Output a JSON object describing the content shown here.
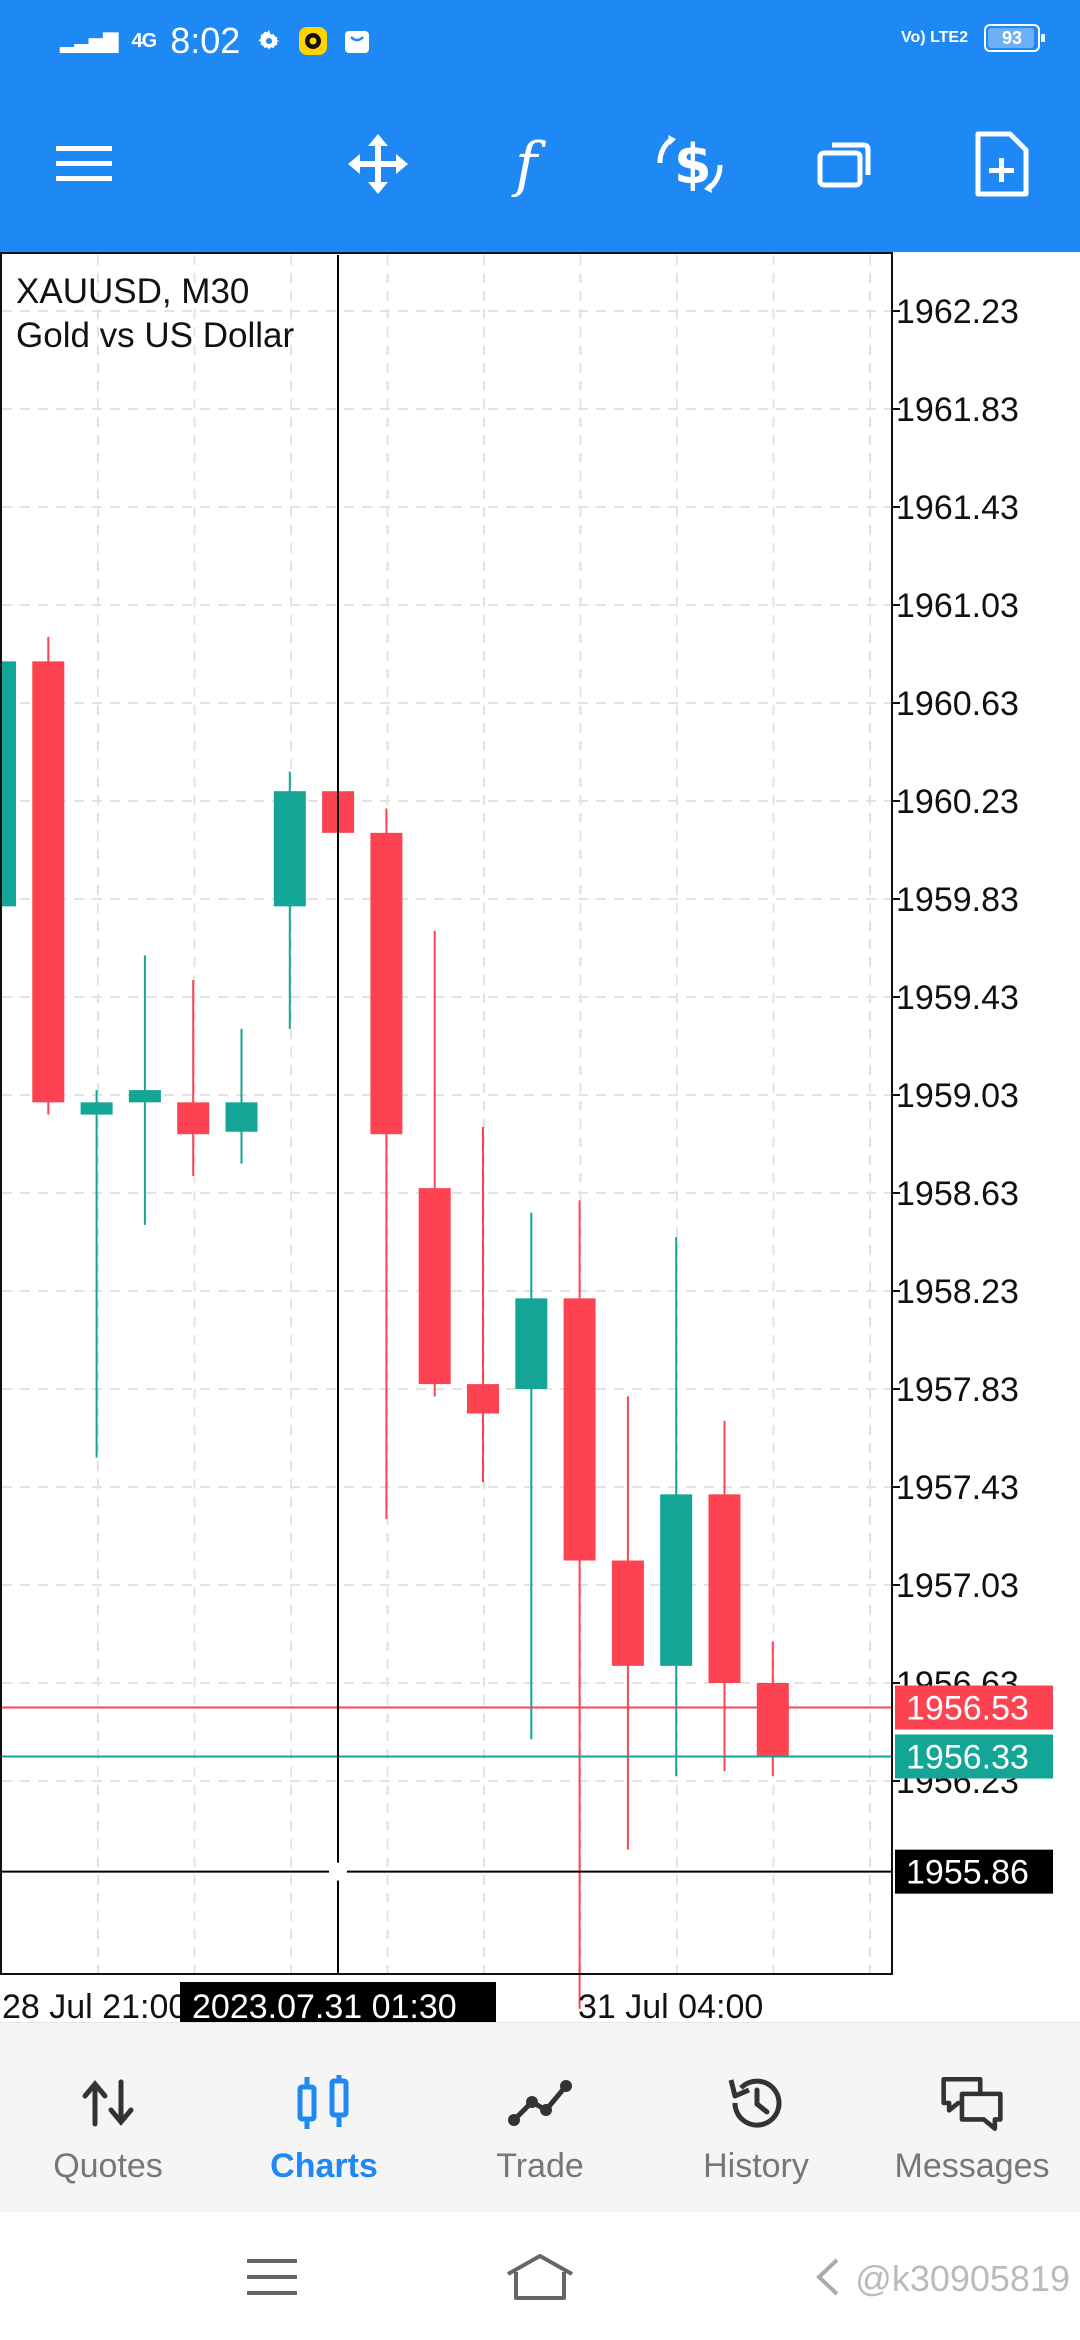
{
  "status_bar": {
    "signal": "4G",
    "time": "8:02",
    "network": "Vo) LTE2",
    "battery": "93"
  },
  "toolbar": {
    "icons": [
      "menu-icon",
      "crosshair-move-icon",
      "indicators-f-icon",
      "trade-dollar-icon",
      "windows-icon",
      "new-order-icon"
    ]
  },
  "chart": {
    "symbol_line": "XAUUSD, M30",
    "description": "Gold vs US Dollar",
    "price_labels": [
      "1962.23",
      "1961.83",
      "1961.43",
      "1961.03",
      "1960.63",
      "1960.23",
      "1959.83",
      "1959.43",
      "1959.03",
      "1958.63",
      "1958.23",
      "1957.83",
      "1957.43",
      "1957.03",
      "1956.63",
      "1956.23"
    ],
    "bid_price": "1956.53",
    "ask_price": "1956.33",
    "crosshair_price": "1955.86",
    "time_labels": [
      "28 Jul 21:00",
      "31 Jul 04:00"
    ],
    "crosshair_time": "2023.07.31 01:30",
    "colors": {
      "bull": "#13a596",
      "bear": "#fd4352",
      "crosshair": "#000000"
    }
  },
  "chart_data": {
    "type": "candlestick",
    "title": "XAUUSD, M30",
    "subtitle": "Gold vs US Dollar",
    "ylim": [
      1955.3,
      1962.4
    ],
    "candles": [
      {
        "o": 1959.8,
        "h": 1960.8,
        "l": 1959.8,
        "c": 1960.8
      },
      {
        "o": 1960.8,
        "h": 1960.9,
        "l": 1958.95,
        "c": 1959.0
      },
      {
        "o": 1958.95,
        "h": 1959.05,
        "l": 1957.55,
        "c": 1959.0
      },
      {
        "o": 1959.0,
        "h": 1959.6,
        "l": 1958.5,
        "c": 1959.05
      },
      {
        "o": 1959.0,
        "h": 1959.5,
        "l": 1958.7,
        "c": 1958.87
      },
      {
        "o": 1958.88,
        "h": 1959.3,
        "l": 1958.75,
        "c": 1959.0
      },
      {
        "o": 1959.8,
        "h": 1960.35,
        "l": 1959.3,
        "c": 1960.27
      },
      {
        "o": 1960.27,
        "h": 1960.27,
        "l": 1960.1,
        "c": 1960.1
      },
      {
        "o": 1960.1,
        "h": 1960.2,
        "l": 1957.3,
        "c": 1958.87
      },
      {
        "o": 1958.65,
        "h": 1959.7,
        "l": 1957.8,
        "c": 1957.85
      },
      {
        "o": 1957.85,
        "h": 1958.9,
        "l": 1957.45,
        "c": 1957.73
      },
      {
        "o": 1957.83,
        "h": 1958.55,
        "l": 1956.4,
        "c": 1958.2
      },
      {
        "o": 1958.2,
        "h": 1958.6,
        "l": 1955.3,
        "c": 1957.13
      },
      {
        "o": 1957.13,
        "h": 1957.8,
        "l": 1955.95,
        "c": 1956.7
      },
      {
        "o": 1956.7,
        "h": 1958.45,
        "l": 1956.25,
        "c": 1957.4
      },
      {
        "o": 1957.4,
        "h": 1957.7,
        "l": 1956.27,
        "c": 1956.63
      },
      {
        "o": 1956.63,
        "h": 1956.8,
        "l": 1956.25,
        "c": 1956.33
      }
    ],
    "bid": 1956.53,
    "ask": 1956.33,
    "crosshair": 1955.86
  },
  "bottom_nav": [
    {
      "label": "Quotes",
      "icon": "quotes-arrows-icon",
      "active": false
    },
    {
      "label": "Charts",
      "icon": "charts-candles-icon",
      "active": true
    },
    {
      "label": "Trade",
      "icon": "trade-line-icon",
      "active": false
    },
    {
      "label": "History",
      "icon": "history-clock-icon",
      "active": false
    },
    {
      "label": "Messages",
      "icon": "messages-chat-icon",
      "active": false
    }
  ],
  "system_nav": {
    "watermark": "@k30905819"
  }
}
